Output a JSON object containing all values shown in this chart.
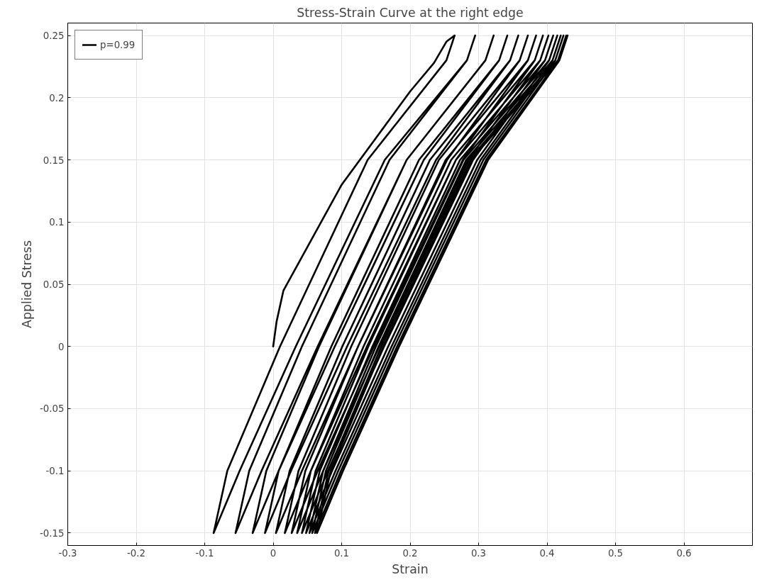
{
  "chart_data": {
    "type": "line",
    "title": "Stress-Strain Curve at the right edge",
    "xlabel": "Strain",
    "ylabel": "Applied Stress",
    "xlim": [
      -0.3,
      0.7
    ],
    "xticks": [
      -0.3,
      -0.2,
      -0.1,
      0,
      0.1,
      0.2,
      0.3,
      0.4,
      0.5,
      0.6
    ],
    "ylim": [
      -0.16,
      0.26
    ],
    "yticks": [
      -0.15,
      -0.1,
      -0.05,
      0,
      0.05,
      0.1,
      0.15,
      0.2,
      0.25
    ],
    "grid": true,
    "legend": "top left",
    "marker": "none",
    "line_style": "solid",
    "series": [
      {
        "name": "p=0.99",
        "color": "#000000",
        "x": [
          0,
          0.005,
          0.015,
          0.1,
          0.2,
          0.235,
          0.253,
          0.265,
          0.253,
          0.138,
          0.01,
          -0.067,
          -0.087,
          -0.049,
          0.033,
          0.163,
          0.283,
          0.295,
          0.283,
          0.17,
          0.042,
          -0.035,
          -0.055,
          -0.017,
          0.065,
          0.195,
          0.31,
          0.322,
          0.31,
          0.195,
          0.067,
          -0.01,
          -0.03,
          0.008,
          0.09,
          0.22,
          0.33,
          0.342,
          0.33,
          0.213,
          0.085,
          0.008,
          -0.012,
          0.026,
          0.108,
          0.238,
          0.346,
          0.358,
          0.346,
          0.229,
          0.101,
          0.024,
          0.004,
          0.042,
          0.124,
          0.254,
          0.36,
          0.372,
          0.36,
          0.242,
          0.114,
          0.037,
          0.017,
          0.055,
          0.137,
          0.267,
          0.372,
          0.384,
          0.372,
          0.252,
          0.124,
          0.047,
          0.027,
          0.065,
          0.147,
          0.277,
          0.382,
          0.394,
          0.382,
          0.26,
          0.132,
          0.055,
          0.035,
          0.073,
          0.155,
          0.285,
          0.39,
          0.402,
          0.39,
          0.267,
          0.139,
          0.062,
          0.042,
          0.08,
          0.162,
          0.292,
          0.397,
          0.409,
          0.397,
          0.273,
          0.145,
          0.068,
          0.048,
          0.086,
          0.168,
          0.298,
          0.403,
          0.415,
          0.403,
          0.278,
          0.15,
          0.073,
          0.053,
          0.091,
          0.173,
          0.303,
          0.408,
          0.42,
          0.408,
          0.282,
          0.154,
          0.077,
          0.057,
          0.095,
          0.177,
          0.307,
          0.412,
          0.424,
          0.412,
          0.286,
          0.158,
          0.081,
          0.061,
          0.099,
          0.181,
          0.311,
          0.416,
          0.428,
          0.416,
          0.289,
          0.161,
          0.084,
          0.064,
          0.102,
          0.184,
          0.314,
          0.418,
          0.43
        ],
        "values": [
          0,
          0.02,
          0.045,
          0.13,
          0.205,
          0.228,
          0.245,
          0.25,
          0.23,
          0.15,
          0,
          -0.1,
          -0.15,
          -0.1,
          0,
          0.15,
          0.23,
          0.25,
          0.23,
          0.15,
          0,
          -0.1,
          -0.15,
          -0.1,
          0,
          0.15,
          0.23,
          0.25,
          0.23,
          0.15,
          0,
          -0.1,
          -0.15,
          -0.1,
          0,
          0.15,
          0.23,
          0.25,
          0.23,
          0.15,
          0,
          -0.1,
          -0.15,
          -0.1,
          0,
          0.15,
          0.23,
          0.25,
          0.23,
          0.15,
          0,
          -0.1,
          -0.15,
          -0.1,
          0,
          0.15,
          0.23,
          0.25,
          0.23,
          0.15,
          0,
          -0.1,
          -0.15,
          -0.1,
          0,
          0.15,
          0.23,
          0.25,
          0.23,
          0.15,
          0,
          -0.1,
          -0.15,
          -0.1,
          0,
          0.15,
          0.23,
          0.25,
          0.23,
          0.15,
          0,
          -0.1,
          -0.15,
          -0.1,
          0,
          0.15,
          0.23,
          0.25,
          0.23,
          0.15,
          0,
          -0.1,
          -0.15,
          -0.1,
          0,
          0.15,
          0.23,
          0.25,
          0.23,
          0.15,
          0,
          -0.1,
          -0.15,
          -0.1,
          0,
          0.15,
          0.23,
          0.25,
          0.23,
          0.15,
          0,
          -0.1,
          -0.15,
          -0.1,
          0,
          0.15,
          0.23,
          0.25,
          0.23,
          0.15,
          0,
          -0.1,
          -0.15,
          -0.1,
          0,
          0.15,
          0.23,
          0.25,
          0.23,
          0.15,
          0,
          -0.1,
          -0.15,
          -0.1,
          0,
          0.15,
          0.23,
          0.25,
          0.23,
          0.15,
          0,
          -0.1,
          -0.15,
          -0.1,
          0,
          0.15,
          0.23,
          0.25
        ]
      }
    ]
  }
}
